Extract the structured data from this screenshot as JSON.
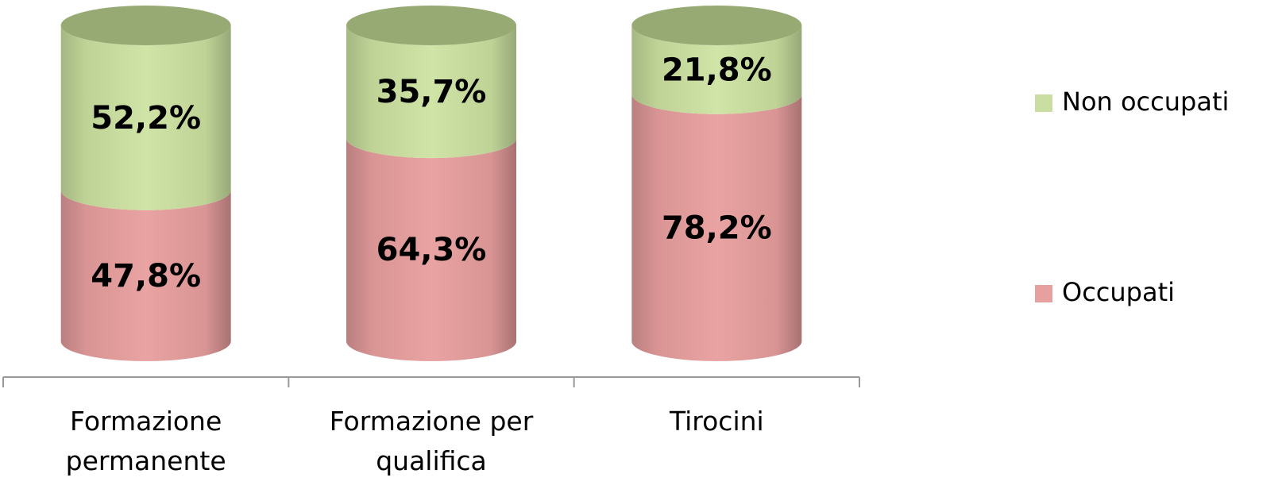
{
  "chart_data": {
    "type": "stacked-cylinder",
    "categories": [
      "Formazione permanente",
      "Formazione per qualifica",
      "Tirocini"
    ],
    "series": [
      {
        "name": "Occupati",
        "color": "#e6a0a0",
        "values": [
          47.8,
          64.3,
          78.2
        ],
        "value_labels": [
          "47,8%",
          "64,3%",
          "78,2%"
        ]
      },
      {
        "name": "Non occupati",
        "color": "#c9dea0",
        "values": [
          52.2,
          35.7,
          21.8
        ],
        "value_labels": [
          "52,2%",
          "35,7%",
          "21,8%"
        ]
      }
    ]
  }
}
